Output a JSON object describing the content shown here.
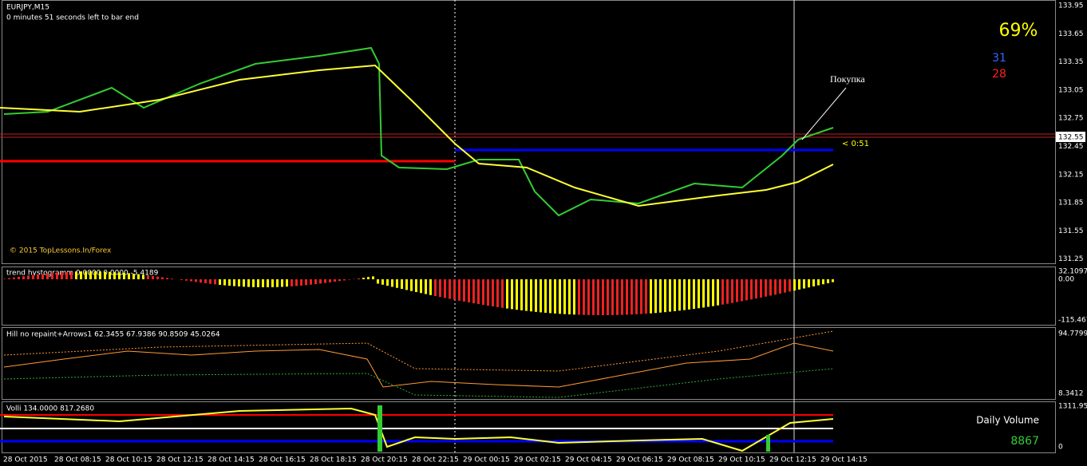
{
  "header": {
    "symbol": "EURJPY,M15",
    "timer": "0 minutes 51 seconds left to bar end",
    "copyright": "© 2015 TopLessons.In/Forex"
  },
  "stats": {
    "percent": "69%",
    "buy_count": "31",
    "sell_count": "28",
    "signal": "Покупка",
    "countdown": "< 0:51",
    "current_price": "132.55"
  },
  "price_axis": [
    "133.95",
    "133.65",
    "133.35",
    "133.05",
    "132.75",
    "132.45",
    "132.15",
    "131.85",
    "131.55",
    "131.25"
  ],
  "panes": [
    {
      "title": "trend hystogramm 0.0000 0.0000 -5.4189",
      "axis": [
        "32.1097",
        "0.00",
        "-115.467"
      ]
    },
    {
      "title": "Hill no repaint+Arrows1 62.3455 67.9386 90.8509 45.0264",
      "axis": [
        "94.7799",
        "8.3412"
      ]
    },
    {
      "title": "Volli 134.0000 817.2680",
      "axis": [
        "1311.95",
        "0"
      ],
      "label": "Daily Volume",
      "value": "8867"
    }
  ],
  "time_axis": [
    "28 Oct 2015",
    "28 Oct 08:15",
    "28 Oct 10:15",
    "28 Oct 12:15",
    "28 Oct 14:15",
    "28 Oct 16:15",
    "28 Oct 18:15",
    "28 Oct 20:15",
    "28 Oct 22:15",
    "29 Oct 00:15",
    "29 Oct 02:15",
    "29 Oct 04:15",
    "29 Oct 06:15",
    "29 Oct 08:15",
    "29 Oct 10:15",
    "29 Oct 12:15",
    "29 Oct 14:15"
  ]
}
